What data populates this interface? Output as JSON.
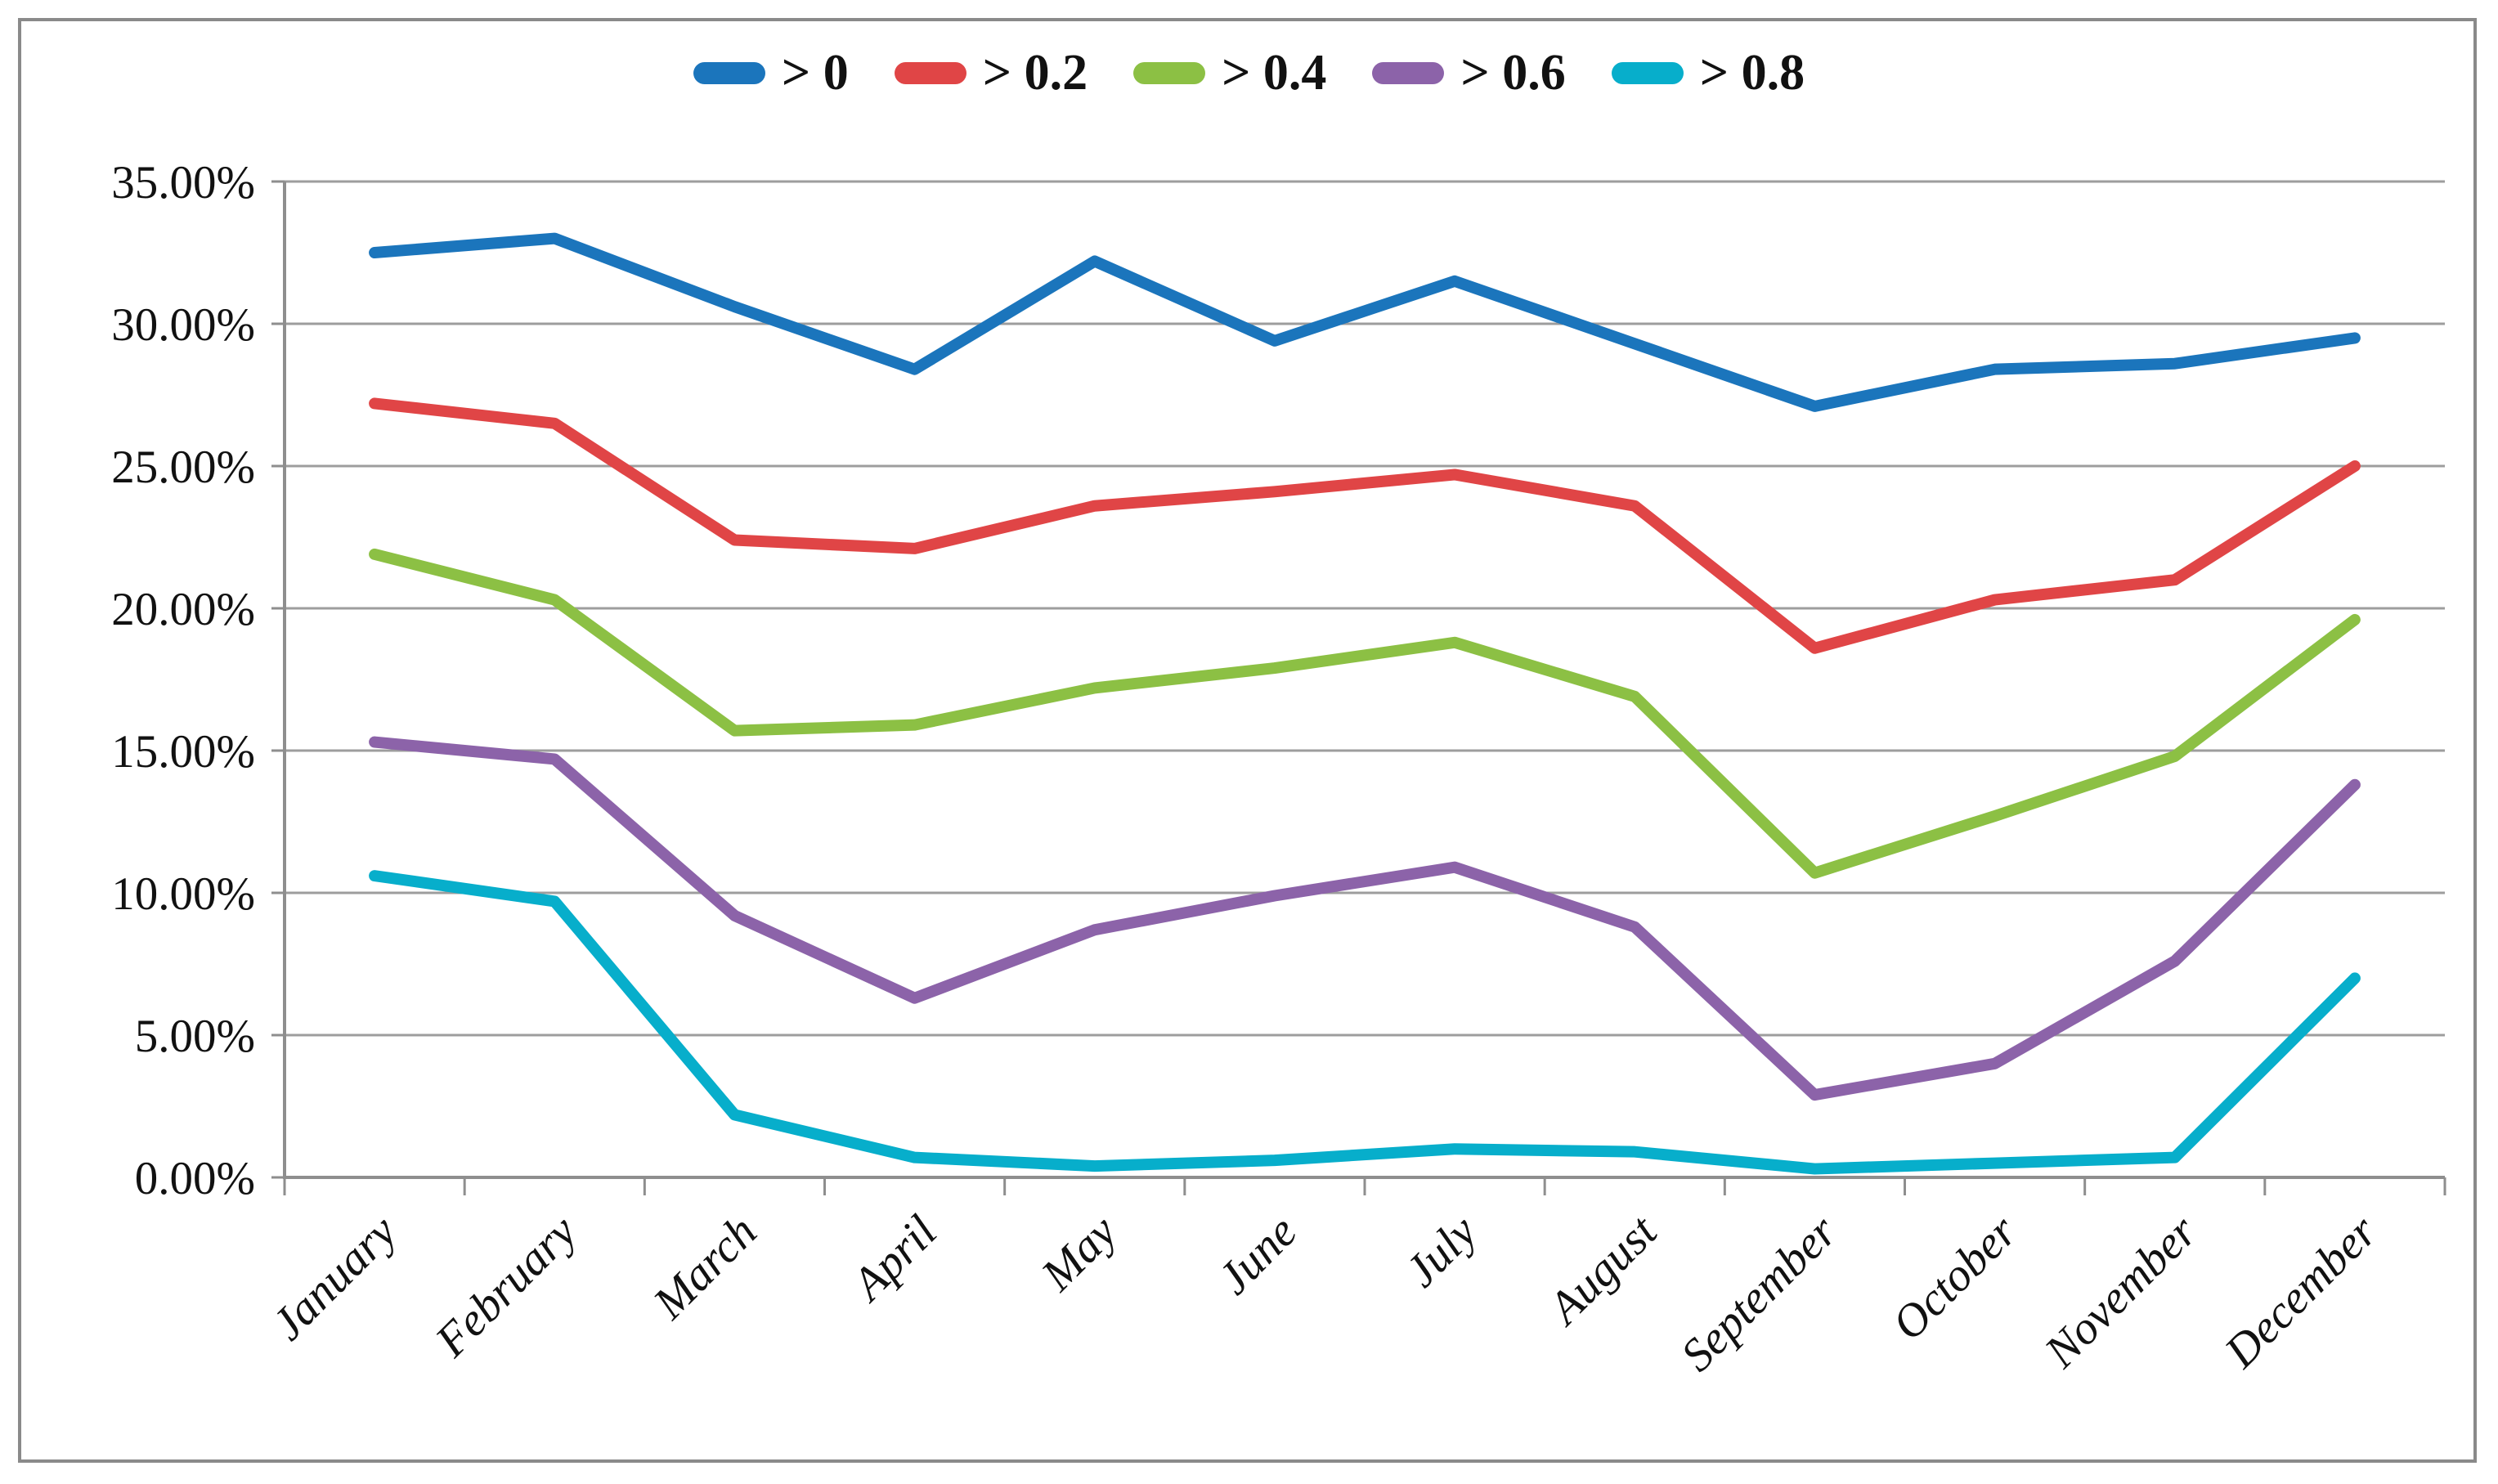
{
  "figure": {
    "background_color": "#ffffff",
    "border_color": "#8a8a8a"
  },
  "legend": {
    "position": "top-center",
    "items": [
      {
        "label": "> 0",
        "color": "#1b75bc"
      },
      {
        "label": "> 0.2",
        "color": "#e04546"
      },
      {
        "label": "> 0.4",
        "color": "#8cc044"
      },
      {
        "label": "> 0.6",
        "color": "#8c63a9"
      },
      {
        "label": "> 0.8",
        "color": "#07aecb"
      }
    ]
  },
  "y_axis": {
    "tick_labels": [
      "35.00%",
      "30.00%",
      "25.00%",
      "20.00%",
      "15.00%",
      "10.00%",
      "5.00%",
      "0.00%"
    ],
    "min": 0,
    "max": 35,
    "step": 5
  },
  "x_axis": {
    "labels": [
      "January",
      "February",
      "March",
      "April",
      "May",
      "June",
      "July",
      "August",
      "September",
      "October",
      "November",
      "December"
    ],
    "rotation_deg": -45
  },
  "chart_data": {
    "type": "line",
    "title": "",
    "xlabel": "",
    "ylabel": "",
    "categories": [
      "January",
      "February",
      "March",
      "April",
      "May",
      "June",
      "July",
      "August",
      "September",
      "October",
      "November",
      "December"
    ],
    "series": [
      {
        "name": "> 0",
        "color": "#1b75bc",
        "values": [
          32.5,
          33.0,
          30.6,
          28.4,
          32.2,
          29.4,
          31.5,
          29.3,
          27.1,
          28.4,
          28.6,
          29.5
        ]
      },
      {
        "name": "> 0.2",
        "color": "#e04546",
        "values": [
          27.2,
          26.5,
          22.4,
          22.1,
          23.6,
          24.1,
          24.7,
          23.6,
          18.6,
          20.3,
          21.0,
          25.0
        ]
      },
      {
        "name": "> 0.4",
        "color": "#8cc044",
        "values": [
          21.9,
          20.3,
          15.7,
          15.9,
          17.2,
          17.9,
          18.8,
          16.9,
          10.7,
          12.7,
          14.8,
          19.6
        ]
      },
      {
        "name": "> 0.6",
        "color": "#8c63a9",
        "values": [
          15.3,
          14.7,
          9.2,
          6.3,
          8.7,
          9.9,
          10.9,
          8.8,
          2.9,
          4.0,
          7.6,
          13.8
        ]
      },
      {
        "name": "> 0.8",
        "color": "#07aecb",
        "values": [
          10.6,
          9.7,
          2.2,
          0.7,
          0.4,
          0.6,
          1.0,
          0.9,
          0.3,
          0.5,
          0.7,
          7.0
        ]
      }
    ],
    "ylim": [
      0,
      35
    ],
    "y_tick_format": "0.00%",
    "grid": "horizontal",
    "gridline_color": "#9d9d9d",
    "axis_color": "#8e8e8e",
    "legend_position": "top"
  }
}
